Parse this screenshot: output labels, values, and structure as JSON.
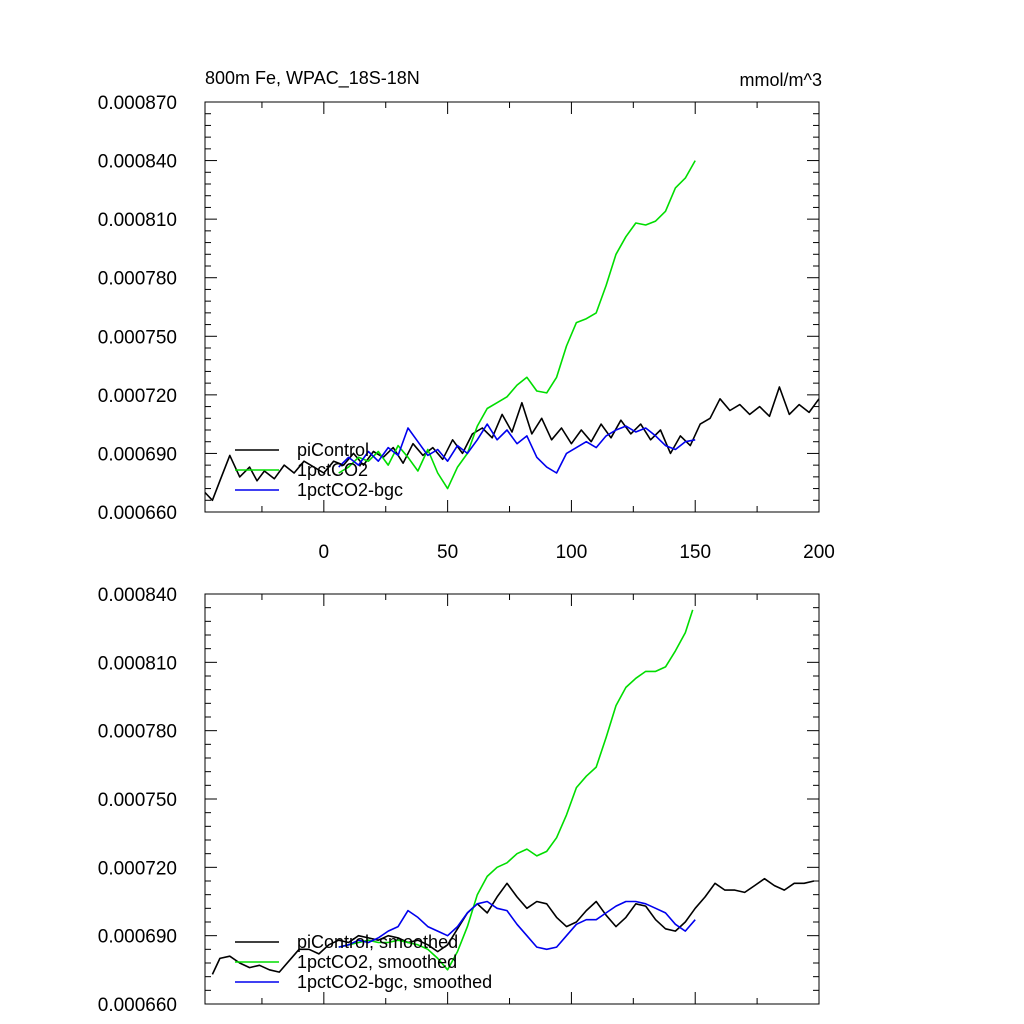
{
  "chart_data": [
    {
      "type": "line",
      "title": "800m Fe, WPAC_18S-18N",
      "units": "mmol/m^3",
      "xlabel": "",
      "ylabel": "",
      "xlim": [
        -48,
        200
      ],
      "ylim": [
        0.00066,
        0.00087
      ],
      "grid": false,
      "legend_position": "bottom-left",
      "x_ticks": [
        0,
        50,
        100,
        150,
        200
      ],
      "x_tick_labels": [
        "0",
        "50",
        "100",
        "150",
        "200"
      ],
      "y_ticks": [
        0.00066,
        0.00069,
        0.00072,
        0.00075,
        0.00078,
        0.00081,
        0.00084,
        0.00087
      ],
      "y_tick_labels": [
        "0.000660",
        "0.000690",
        "0.000720",
        "0.000750",
        "0.000780",
        "0.000810",
        "0.000840",
        "0.000870"
      ],
      "series": [
        {
          "name": "piControl",
          "color": "#000000",
          "x": [
            -48,
            -45,
            -42,
            -38,
            -34,
            -30,
            -27,
            -24,
            -20,
            -16,
            -12,
            -8,
            -4,
            0,
            4,
            8,
            12,
            16,
            20,
            24,
            28,
            32,
            36,
            40,
            44,
            48,
            52,
            56,
            60,
            64,
            68,
            72,
            76,
            80,
            84,
            88,
            92,
            96,
            100,
            104,
            108,
            112,
            116,
            120,
            124,
            128,
            132,
            136,
            140,
            144,
            148,
            152,
            156,
            160,
            164,
            168,
            172,
            176,
            180,
            184,
            188,
            192,
            196,
            200
          ],
          "values": [
            0.00067,
            0.000666,
            0.000676,
            0.000689,
            0.000678,
            0.000683,
            0.000676,
            0.000681,
            0.000677,
            0.000684,
            0.00068,
            0.000686,
            0.000683,
            0.00068,
            0.000686,
            0.000684,
            0.00069,
            0.000684,
            0.000691,
            0.000688,
            0.000693,
            0.000685,
            0.000695,
            0.000689,
            0.000693,
            0.000687,
            0.000697,
            0.00069,
            0.0007,
            0.000703,
            0.000698,
            0.00071,
            0.000701,
            0.000716,
            0.0007,
            0.000708,
            0.000697,
            0.000703,
            0.000695,
            0.000702,
            0.000696,
            0.000705,
            0.000698,
            0.000707,
            0.0007,
            0.000705,
            0.000697,
            0.000702,
            0.00069,
            0.000699,
            0.000694,
            0.000705,
            0.000708,
            0.000718,
            0.000712,
            0.000715,
            0.00071,
            0.000714,
            0.000709,
            0.000724,
            0.00071,
            0.000715,
            0.000711,
            0.000718
          ]
        },
        {
          "name": "1pctCO2",
          "color": "#00dd00",
          "x": [
            6,
            10,
            14,
            18,
            22,
            26,
            30,
            34,
            38,
            42,
            46,
            50,
            54,
            58,
            62,
            66,
            70,
            74,
            78,
            82,
            86,
            90,
            94,
            98,
            102,
            106,
            110,
            114,
            118,
            122,
            126,
            130,
            134,
            138,
            142,
            146,
            150
          ],
          "values": [
            0.00068,
            0.000683,
            0.000688,
            0.000686,
            0.000691,
            0.000684,
            0.000694,
            0.000688,
            0.000681,
            0.000692,
            0.00068,
            0.000672,
            0.000683,
            0.00069,
            0.000704,
            0.000713,
            0.000716,
            0.000719,
            0.000725,
            0.000729,
            0.000722,
            0.000721,
            0.000729,
            0.000745,
            0.000757,
            0.000759,
            0.000762,
            0.000776,
            0.000792,
            0.000801,
            0.000808,
            0.000807,
            0.000809,
            0.000814,
            0.000826,
            0.000831,
            0.00084
          ]
        },
        {
          "name": "1pctCO2-bgc",
          "color": "#0000ee",
          "x": [
            6,
            10,
            14,
            18,
            22,
            26,
            30,
            34,
            38,
            42,
            46,
            50,
            54,
            58,
            62,
            66,
            70,
            74,
            78,
            82,
            86,
            90,
            94,
            98,
            102,
            106,
            110,
            114,
            118,
            122,
            126,
            130,
            134,
            138,
            142,
            146,
            150
          ],
          "values": [
            0.000683,
            0.000688,
            0.000684,
            0.000691,
            0.000686,
            0.000693,
            0.000689,
            0.000703,
            0.000696,
            0.000689,
            0.000692,
            0.000686,
            0.000694,
            0.00069,
            0.000697,
            0.000705,
            0.000697,
            0.000702,
            0.000695,
            0.000699,
            0.000688,
            0.000683,
            0.00068,
            0.00069,
            0.000693,
            0.000696,
            0.000693,
            0.000699,
            0.000702,
            0.000704,
            0.000701,
            0.000703,
            0.000699,
            0.000694,
            0.000692,
            0.000696,
            0.000697
          ]
        }
      ]
    },
    {
      "type": "line",
      "title": "",
      "xlabel": "",
      "ylabel": "",
      "xlim": [
        -48,
        200
      ],
      "ylim": [
        0.00066,
        0.00084
      ],
      "grid": false,
      "legend_position": "bottom-left",
      "x_ticks": [
        0,
        50,
        100,
        150,
        200
      ],
      "x_tick_labels": [],
      "y_ticks": [
        0.00066,
        0.00069,
        0.00072,
        0.00075,
        0.00078,
        0.00081,
        0.00084
      ],
      "y_tick_labels": [
        "0.000660",
        "0.000690",
        "0.000720",
        "0.000750",
        "0.000780",
        "0.000810",
        "0.000840"
      ],
      "series": [
        {
          "name": "piControl, smoothed",
          "color": "#000000",
          "x": [
            -45,
            -42,
            -38,
            -34,
            -30,
            -26,
            -22,
            -18,
            -14,
            -10,
            -6,
            -2,
            2,
            6,
            10,
            14,
            18,
            22,
            26,
            30,
            34,
            38,
            42,
            46,
            50,
            54,
            58,
            62,
            66,
            70,
            74,
            78,
            82,
            86,
            90,
            94,
            98,
            102,
            106,
            110,
            114,
            118,
            122,
            126,
            130,
            134,
            138,
            142,
            146,
            150,
            154,
            158,
            162,
            166,
            170,
            174,
            178,
            182,
            186,
            190,
            194,
            198
          ],
          "values": [
            0.000673,
            0.00068,
            0.000681,
            0.000678,
            0.000676,
            0.000677,
            0.000675,
            0.000674,
            0.000679,
            0.000684,
            0.000684,
            0.000682,
            0.000686,
            0.000688,
            0.000687,
            0.00069,
            0.000689,
            0.000688,
            0.00069,
            0.000689,
            0.000687,
            0.000688,
            0.000686,
            0.000683,
            0.000686,
            0.000693,
            0.0007,
            0.000704,
            0.0007,
            0.000707,
            0.000713,
            0.000707,
            0.000702,
            0.000705,
            0.000704,
            0.000698,
            0.000694,
            0.000696,
            0.000701,
            0.000705,
            0.000699,
            0.000694,
            0.000698,
            0.000704,
            0.000703,
            0.000697,
            0.000693,
            0.000692,
            0.000696,
            0.000702,
            0.000707,
            0.000713,
            0.00071,
            0.00071,
            0.000709,
            0.000712,
            0.000715,
            0.000712,
            0.00071,
            0.000713,
            0.000713,
            0.000714
          ]
        },
        {
          "name": "1pctCO2, smoothed",
          "color": "#00dd00",
          "x": [
            6,
            10,
            14,
            18,
            22,
            26,
            30,
            34,
            38,
            42,
            46,
            50,
            54,
            58,
            62,
            66,
            70,
            74,
            78,
            82,
            86,
            90,
            94,
            98,
            102,
            106,
            110,
            114,
            118,
            122,
            126,
            130,
            134,
            138,
            142,
            146,
            149
          ],
          "values": [
            0.000685,
            0.000686,
            0.000687,
            0.000688,
            0.000687,
            0.000687,
            0.000688,
            0.000687,
            0.000686,
            0.000684,
            0.00068,
            0.000675,
            0.000683,
            0.000694,
            0.000708,
            0.000716,
            0.00072,
            0.000722,
            0.000726,
            0.000728,
            0.000725,
            0.000727,
            0.000733,
            0.000743,
            0.000755,
            0.00076,
            0.000764,
            0.000777,
            0.000791,
            0.000799,
            0.000803,
            0.000806,
            0.000806,
            0.000808,
            0.000815,
            0.000823,
            0.000833
          ]
        },
        {
          "name": "1pctCO2-bgc, smoothed",
          "color": "#0000ee",
          "x": [
            6,
            10,
            14,
            18,
            22,
            26,
            30,
            34,
            38,
            42,
            46,
            50,
            54,
            58,
            62,
            66,
            70,
            74,
            78,
            82,
            86,
            90,
            94,
            98,
            102,
            106,
            110,
            114,
            118,
            122,
            126,
            130,
            134,
            138,
            142,
            146,
            150
          ],
          "values": [
            0.000685,
            0.000686,
            0.000688,
            0.000687,
            0.000689,
            0.000692,
            0.000694,
            0.000701,
            0.000698,
            0.000694,
            0.000692,
            0.00069,
            0.000694,
            0.0007,
            0.000704,
            0.000705,
            0.000702,
            0.000701,
            0.000695,
            0.00069,
            0.000685,
            0.000684,
            0.000685,
            0.00069,
            0.000695,
            0.000697,
            0.000697,
            0.0007,
            0.000703,
            0.000705,
            0.000705,
            0.000704,
            0.000702,
            0.0007,
            0.000695,
            0.000692,
            0.000697
          ]
        }
      ]
    }
  ]
}
